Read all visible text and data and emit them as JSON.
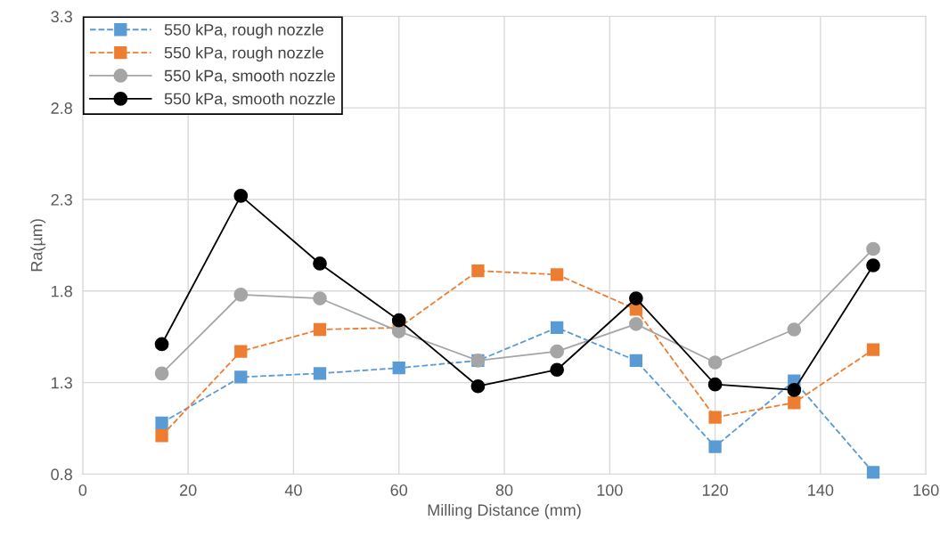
{
  "chart_data": {
    "type": "line",
    "xlabel": "Milling Distance (mm)",
    "ylabel": "Ra(µm)",
    "x": [
      15,
      30,
      45,
      60,
      75,
      90,
      105,
      120,
      135,
      150
    ],
    "series": [
      {
        "name": "550 kPa, rough nozzle",
        "color": "#5b9bd5",
        "marker": "square",
        "line_style": "dashed",
        "values": [
          1.08,
          1.33,
          1.35,
          1.38,
          1.42,
          1.6,
          1.42,
          0.95,
          1.31,
          0.81
        ]
      },
      {
        "name": "550 kPa, rough nozzle",
        "color": "#ed7d31",
        "marker": "square",
        "line_style": "dashed",
        "values": [
          1.01,
          1.47,
          1.59,
          1.6,
          1.91,
          1.89,
          1.7,
          1.11,
          1.19,
          1.48
        ]
      },
      {
        "name": "550 kPa, smooth nozzle",
        "color": "#a5a5a5",
        "marker": "circle",
        "line_style": "solid",
        "values": [
          1.35,
          1.78,
          1.76,
          1.58,
          1.42,
          1.47,
          1.62,
          1.41,
          1.59,
          2.03
        ]
      },
      {
        "name": "550 kPa, smooth nozzle",
        "color": "#000000",
        "marker": "circle",
        "line_style": "solid",
        "values": [
          1.51,
          2.32,
          1.95,
          1.64,
          1.28,
          1.37,
          1.76,
          1.29,
          1.26,
          1.94
        ]
      }
    ],
    "xlim": [
      0,
      160
    ],
    "xticks": [
      0,
      20,
      40,
      60,
      80,
      100,
      120,
      140,
      160
    ],
    "ylim": [
      0.8,
      3.3
    ],
    "yticks": [
      0.8,
      1.3,
      1.8,
      2.3,
      2.8,
      3.3
    ],
    "grid": true,
    "legend": "top left"
  }
}
